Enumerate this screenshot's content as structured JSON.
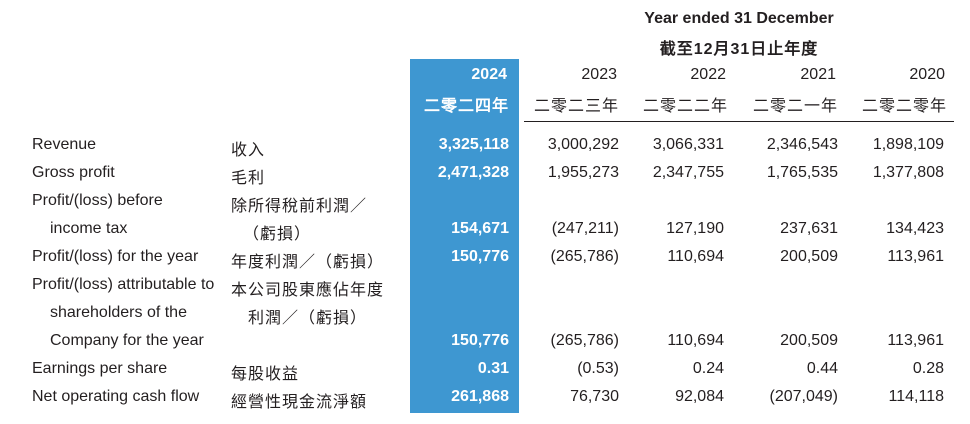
{
  "header": {
    "period_en": "Year ended 31 December",
    "period_zh": "截至12月31日止年度",
    "years": [
      {
        "en": "2024",
        "zh": "二零二四年"
      },
      {
        "en": "2023",
        "zh": "二零二三年"
      },
      {
        "en": "2022",
        "zh": "二零二二年"
      },
      {
        "en": "2021",
        "zh": "二零二一年"
      },
      {
        "en": "2020",
        "zh": "二零二零年"
      }
    ]
  },
  "rows": [
    {
      "en": [
        "Revenue"
      ],
      "zh": [
        "收入"
      ],
      "values": [
        "3,325,118",
        "3,000,292",
        "3,066,331",
        "2,346,543",
        "1,898,109"
      ]
    },
    {
      "en": [
        "Gross profit"
      ],
      "zh": [
        "毛利"
      ],
      "values": [
        "2,471,328",
        "1,955,273",
        "2,347,755",
        "1,765,535",
        "1,377,808"
      ]
    },
    {
      "en": [
        "Profit/(loss) before",
        "income tax"
      ],
      "zh": [
        "除所得稅前利潤／",
        "（虧損）"
      ],
      "values": [
        "154,671",
        "(247,211)",
        "127,190",
        "237,631",
        "134,423"
      ]
    },
    {
      "en": [
        "Profit/(loss) for the year"
      ],
      "zh": [
        "年度利潤／（虧損）"
      ],
      "values": [
        "150,776",
        "(265,786)",
        "110,694",
        "200,509",
        "113,961"
      ]
    },
    {
      "en": [
        "Profit/(loss) attributable to",
        "shareholders of the",
        "Company for the year"
      ],
      "zh": [
        "本公司股東應佔年度",
        "利潤／（虧損）"
      ],
      "values": [
        "150,776",
        "(265,786)",
        "110,694",
        "200,509",
        "113,961"
      ]
    },
    {
      "en": [
        "Earnings per share"
      ],
      "zh": [
        "每股收益"
      ],
      "values": [
        "0.31",
        "(0.53)",
        "0.24",
        "0.44",
        "0.28"
      ]
    },
    {
      "en": [
        "Net operating cash flow"
      ],
      "zh": [
        "經營性現金流淨額"
      ],
      "values": [
        "261,868",
        "76,730",
        "92,084",
        "(207,049)",
        "114,118"
      ]
    }
  ]
}
